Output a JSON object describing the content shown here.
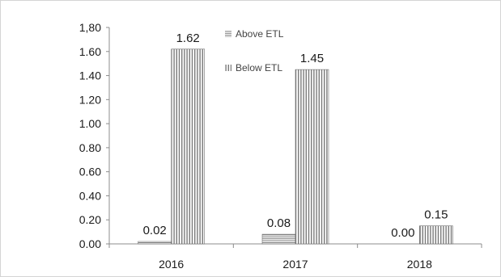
{
  "chart_data": {
    "type": "bar",
    "categories": [
      "2016",
      "2017",
      "2018"
    ],
    "series": [
      {
        "name": "Above ETL",
        "values": [
          0.02,
          0.08,
          0.0
        ],
        "labels": [
          "0.02",
          "0.08",
          "0.00"
        ],
        "pattern": "horizontal-lines"
      },
      {
        "name": "Below ETL",
        "values": [
          1.62,
          1.45,
          0.15
        ],
        "labels": [
          "1.62",
          "1.45",
          "0.15"
        ],
        "pattern": "vertical-lines"
      }
    ],
    "ylim": [
      0,
      1.8
    ],
    "yticks": [
      "0.00",
      "0.20",
      "0.40",
      "0.60",
      "0.80",
      "1.00",
      "1.20",
      "1.40",
      "1.60",
      "1,80"
    ],
    "title": "",
    "xlabel": "",
    "ylabel": "",
    "grid": false,
    "legend_position": "top-center",
    "colors": {
      "axis": "#8c8c8c",
      "bar_stroke": "#6e6e6e",
      "bar_fill": "#ffffff"
    }
  }
}
